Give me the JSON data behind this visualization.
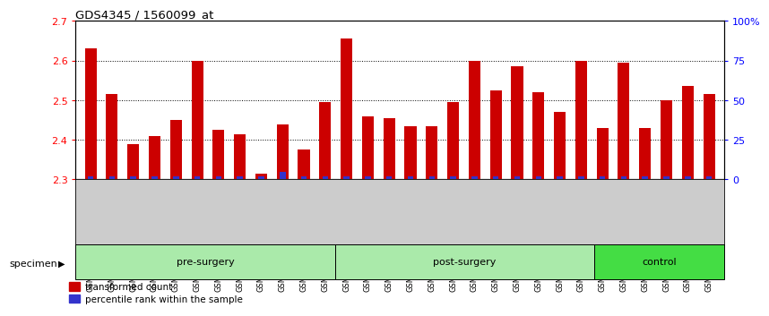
{
  "title": "GDS4345 / 1560099_at",
  "samples": [
    "GSM842012",
    "GSM842013",
    "GSM842014",
    "GSM842015",
    "GSM842016",
    "GSM842017",
    "GSM842018",
    "GSM842019",
    "GSM842020",
    "GSM842021",
    "GSM842022",
    "GSM842023",
    "GSM842024",
    "GSM842025",
    "GSM842026",
    "GSM842027",
    "GSM842028",
    "GSM842029",
    "GSM842030",
    "GSM842031",
    "GSM842032",
    "GSM842033",
    "GSM842034",
    "GSM842035",
    "GSM842036",
    "GSM842037",
    "GSM842038",
    "GSM842039",
    "GSM842040",
    "GSM842041"
  ],
  "red_values": [
    2.63,
    2.515,
    2.39,
    2.41,
    2.45,
    2.6,
    2.425,
    2.415,
    2.315,
    2.44,
    2.375,
    2.495,
    2.655,
    2.46,
    2.455,
    2.435,
    2.435,
    2.495,
    2.6,
    2.525,
    2.585,
    2.52,
    2.47,
    2.6,
    2.43,
    2.595,
    2.43,
    2.5,
    2.535,
    2.515
  ],
  "blue_pct": [
    2,
    2,
    2,
    2,
    2,
    2,
    2,
    2,
    2,
    5,
    2,
    2,
    2,
    2,
    2,
    2,
    2,
    2,
    2,
    2,
    2,
    2,
    2,
    2,
    2,
    2,
    2,
    2,
    2,
    2
  ],
  "groups": {
    "pre-surgery": [
      0,
      12
    ],
    "post-surgery": [
      12,
      24
    ],
    "control": [
      24,
      30
    ]
  },
  "ylim_left": [
    2.3,
    2.7
  ],
  "ylim_right": [
    0,
    100
  ],
  "yticks_left": [
    2.3,
    2.4,
    2.5,
    2.6,
    2.7
  ],
  "yticks_right": [
    0,
    25,
    50,
    75,
    100
  ],
  "ytick_labels_right": [
    "0",
    "25",
    "50",
    "75",
    "100%"
  ],
  "bar_color_red": "#CC0000",
  "bar_color_blue": "#3333CC",
  "light_green": "#AAEAAA",
  "bright_green": "#44DD44",
  "gray_bg": "#CCCCCC",
  "specimen_label": "specimen",
  "legend_red": "transformed count",
  "legend_blue": "percentile rank within the sample"
}
